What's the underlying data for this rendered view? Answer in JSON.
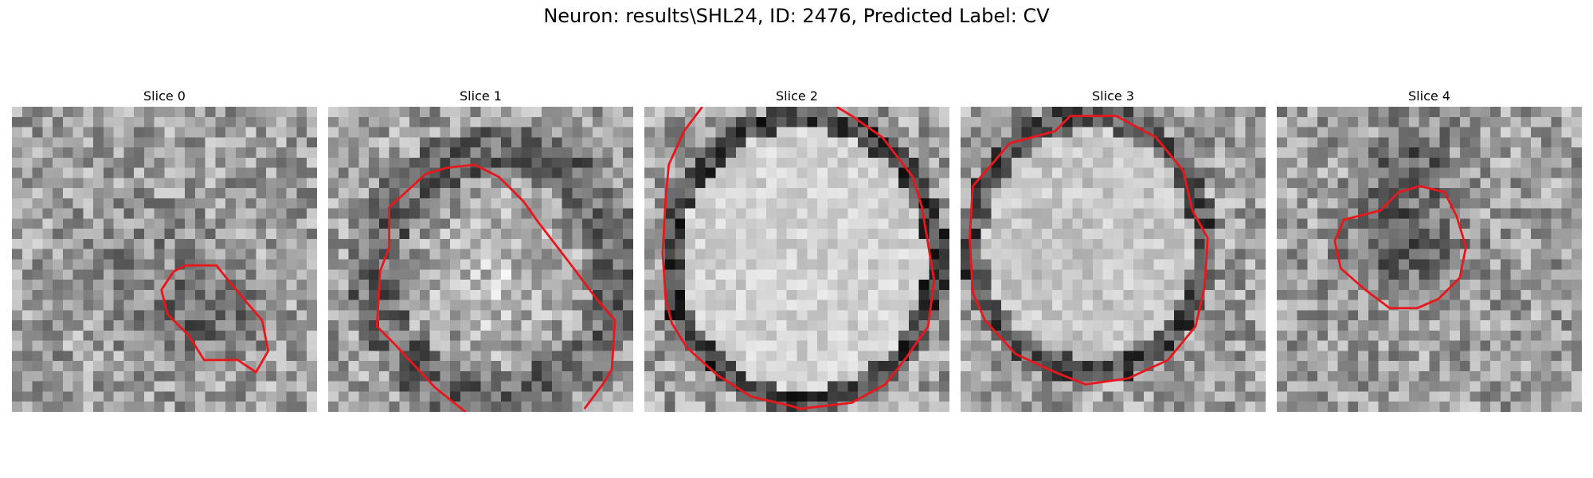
{
  "figure": {
    "title": "Neuron: results\\SHL24, ID: 2476, Predicted Label: CV",
    "panels": [
      {
        "title": "Slice 0",
        "dark_core": "ring-small",
        "seed": 11
      },
      {
        "title": "Slice 1",
        "dark_core": "ring-large-bright",
        "seed": 23
      },
      {
        "title": "Slice 2",
        "dark_core": "ellipse-bright",
        "seed": 37
      },
      {
        "title": "Slice 3",
        "dark_core": "ring-medium-bright",
        "seed": 41
      },
      {
        "title": "Slice 4",
        "dark_core": "dark-blob",
        "seed": 53
      }
    ],
    "contour_color": "#e8171c",
    "colormap": "gray"
  }
}
